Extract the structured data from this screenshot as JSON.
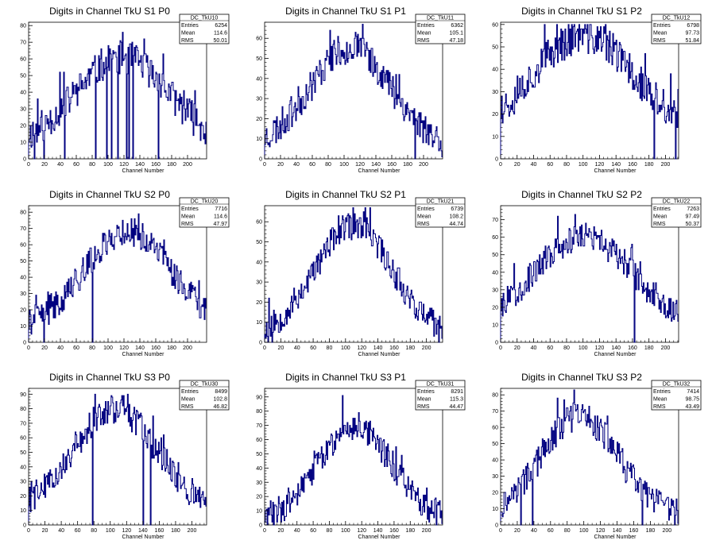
{
  "page": {
    "background": "#ffffff",
    "line_color": "#000080"
  },
  "chart_data": [
    {
      "type": "histogram",
      "title": "Digits in Channel TkU S1 P0",
      "xlabel": "Channel Number",
      "xlim": [
        0,
        224
      ],
      "ylim": [
        0,
        82
      ],
      "xticks": [
        0,
        20,
        40,
        60,
        80,
        100,
        120,
        140,
        160,
        180,
        200
      ],
      "yticks": [
        0,
        10,
        20,
        30,
        40,
        50,
        60,
        70,
        80
      ],
      "stats": {
        "name": "DC_TkU10",
        "entries": "6254",
        "mean": "114.6",
        "rms": "50.01"
      },
      "shape": {
        "peak": 53,
        "center": 118,
        "width": 58,
        "floor": 8,
        "noise": 10,
        "seed": 11,
        "spikes": [
          [
            118,
            76
          ]
        ],
        "drops": [
          7,
          19,
          45,
          84,
          98,
          104,
          112,
          123,
          126,
          131,
          163
        ]
      }
    },
    {
      "type": "histogram",
      "title": "Digits in Channel TkU S1 P1",
      "xlabel": "Channel Number",
      "xlim": [
        0,
        224
      ],
      "ylim": [
        0,
        68
      ],
      "xticks": [
        0,
        20,
        40,
        60,
        80,
        100,
        120,
        140,
        160,
        180,
        200
      ],
      "yticks": [
        0,
        10,
        20,
        30,
        40,
        50,
        60
      ],
      "stats": {
        "name": "DC_TkU11",
        "entries": "6362",
        "mean": "105.1",
        "rms": "47.18"
      },
      "shape": {
        "peak": 50,
        "center": 108,
        "width": 52,
        "floor": 5,
        "noise": 8,
        "seed": 23,
        "spikes": [
          [
            82,
            64
          ]
        ],
        "drops": [
          189
        ]
      }
    },
    {
      "type": "histogram",
      "title": "Digits in Channel TkU S1 P2",
      "xlabel": "Channel Number",
      "xlim": [
        0,
        216
      ],
      "ylim": [
        0,
        61
      ],
      "xticks": [
        0,
        20,
        40,
        60,
        80,
        100,
        120,
        140,
        160,
        180,
        200
      ],
      "yticks": [
        0,
        10,
        20,
        30,
        40,
        50,
        60
      ],
      "stats": {
        "name": "DC_TkU12",
        "entries": "6798",
        "mean": "97.73",
        "rms": "51.84"
      },
      "shape": {
        "peak": 45,
        "center": 100,
        "width": 62,
        "floor": 10,
        "noise": 8,
        "seed": 37,
        "spikes": [
          [
            93,
            58
          ]
        ],
        "drops": [
          186,
          212
        ]
      }
    },
    {
      "type": "histogram",
      "title": "Digits in Channel TkU S2 P0",
      "xlabel": "Channel Number",
      "xlim": [
        0,
        224
      ],
      "ylim": [
        0,
        84
      ],
      "xticks": [
        0,
        20,
        40,
        60,
        80,
        100,
        120,
        140,
        160,
        180,
        200
      ],
      "yticks": [
        0,
        10,
        20,
        30,
        40,
        50,
        60,
        70,
        80
      ],
      "stats": {
        "name": "DC_TkU20",
        "entries": "7716",
        "mean": "114.6",
        "rms": "47.97"
      },
      "shape": {
        "peak": 60,
        "center": 125,
        "width": 55,
        "floor": 8,
        "noise": 9,
        "seed": 41,
        "spikes": [
          [
            138,
            79
          ]
        ],
        "drops": [
          19,
          80
        ]
      }
    },
    {
      "type": "histogram",
      "title": "Digits in Channel TkU S2 P1",
      "xlabel": "Channel Number",
      "xlim": [
        0,
        220
      ],
      "ylim": [
        0,
        68
      ],
      "xticks": [
        0,
        20,
        40,
        60,
        80,
        100,
        120,
        140,
        160,
        180,
        200
      ],
      "yticks": [
        0,
        10,
        20,
        30,
        40,
        50,
        60
      ],
      "stats": {
        "name": "DC_TkU21",
        "entries": "6739",
        "mean": "108.2",
        "rms": "44.74"
      },
      "shape": {
        "peak": 55,
        "center": 110,
        "width": 48,
        "floor": 3,
        "noise": 7,
        "seed": 53,
        "spikes": [
          [
            122,
            65
          ]
        ],
        "drops": [
          4,
          9,
          215
        ]
      }
    },
    {
      "type": "histogram",
      "title": "Digits in Channel TkU S2 P2",
      "xlabel": "Channel Number",
      "xlim": [
        0,
        216
      ],
      "ylim": [
        0,
        78
      ],
      "xticks": [
        0,
        20,
        40,
        60,
        80,
        100,
        120,
        140,
        160,
        180,
        200
      ],
      "yticks": [
        0,
        10,
        20,
        30,
        40,
        50,
        60,
        70
      ],
      "stats": {
        "name": "DC_TkU22",
        "entries": "7263",
        "mean": "97.49",
        "rms": "50.37"
      },
      "shape": {
        "peak": 50,
        "center": 100,
        "width": 58,
        "floor": 10,
        "noise": 8,
        "seed": 67,
        "spikes": [
          [
            90,
            73
          ]
        ],
        "drops": [
          162
        ]
      }
    },
    {
      "type": "histogram",
      "title": "Digits in Channel TkU S3 P0",
      "xlabel": "Channel Number",
      "xlim": [
        0,
        218
      ],
      "ylim": [
        0,
        94
      ],
      "xticks": [
        0,
        20,
        40,
        60,
        80,
        100,
        120,
        140,
        160,
        180,
        200
      ],
      "yticks": [
        0,
        10,
        20,
        30,
        40,
        50,
        60,
        70,
        80,
        90
      ],
      "stats": {
        "name": "DC_TkU30",
        "entries": "8499",
        "mean": "102.8",
        "rms": "46.82"
      },
      "shape": {
        "peak": 70,
        "center": 105,
        "width": 50,
        "floor": 10,
        "noise": 10,
        "seed": 79,
        "spikes": [
          [
            101,
            89
          ],
          [
            116,
            89
          ]
        ],
        "drops": [
          78,
          140,
          149
        ]
      }
    },
    {
      "type": "histogram",
      "title": "Digits in Channel TkU S3 P1",
      "xlabel": "Channel Number",
      "xlim": [
        0,
        220
      ],
      "ylim": [
        0,
        96
      ],
      "xticks": [
        0,
        20,
        40,
        60,
        80,
        100,
        120,
        140,
        160,
        180,
        200
      ],
      "yticks": [
        0,
        10,
        20,
        30,
        40,
        50,
        60,
        70,
        80,
        90
      ],
      "stats": {
        "name": "DC_TkU31",
        "entries": "8291",
        "mean": "115.3",
        "rms": "44.47"
      },
      "shape": {
        "peak": 66,
        "center": 112,
        "width": 44,
        "floor": 4,
        "noise": 10,
        "seed": 83,
        "spikes": [
          [
            96,
            91
          ]
        ],
        "drops": []
      }
    },
    {
      "type": "histogram",
      "title": "Digits in Channel TkU S3 P2",
      "xlabel": "Channel Number",
      "xlim": [
        0,
        214
      ],
      "ylim": [
        0,
        84
      ],
      "xticks": [
        0,
        20,
        40,
        60,
        80,
        100,
        120,
        140,
        160,
        180,
        200
      ],
      "yticks": [
        0,
        10,
        20,
        30,
        40,
        50,
        60,
        70,
        80
      ],
      "stats": {
        "name": "DC_TkU32",
        "entries": "7414",
        "mean": "98.75",
        "rms": "43.49"
      },
      "shape": {
        "peak": 62,
        "center": 95,
        "width": 46,
        "floor": 5,
        "noise": 9,
        "seed": 97,
        "spikes": [
          [
            68,
            78
          ]
        ],
        "drops": [
          24,
          38,
          170
        ]
      }
    }
  ]
}
